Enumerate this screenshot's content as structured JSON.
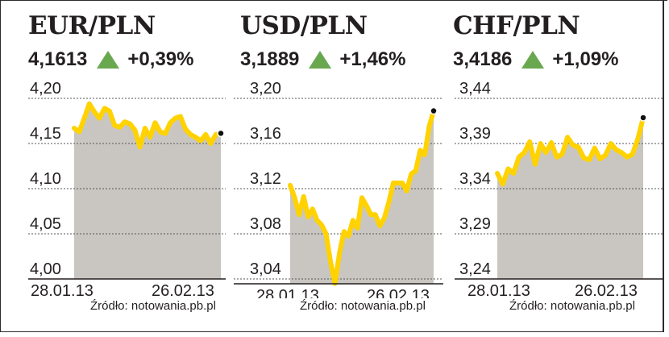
{
  "colors": {
    "line": "#ffd200",
    "area": "#c9c6c1",
    "arrow_up": "#6aa84f",
    "grid": "#555555",
    "text": "#231f20"
  },
  "source_label": "Źródło: notowania.pb.pl",
  "panels": [
    {
      "title": "EUR/PLN",
      "rate": "4,1613",
      "change": "+0,39%",
      "direction_icon": "up-triangle-icon"
    },
    {
      "title": "USD/PLN",
      "rate": "3,1889",
      "change": "+1,46%",
      "direction_icon": "up-triangle-icon"
    },
    {
      "title": "CHF/PLN",
      "rate": "3,4186",
      "change": "+1,09%",
      "direction_icon": "up-triangle-icon"
    }
  ],
  "chart_data": [
    {
      "type": "area",
      "title": "EUR/PLN",
      "x_ticks": [
        "28.01.13",
        "26.02.13"
      ],
      "y_ticks": [
        "4,20",
        "4,15",
        "4,10",
        "4,05",
        "4,00"
      ],
      "ylim": [
        4.0,
        4.2
      ],
      "values": [
        4.167,
        4.163,
        4.178,
        4.194,
        4.185,
        4.178,
        4.189,
        4.186,
        4.17,
        4.168,
        4.174,
        4.172,
        4.165,
        4.146,
        4.167,
        4.157,
        4.173,
        4.163,
        4.161,
        4.173,
        4.178,
        4.18,
        4.166,
        4.16,
        4.157,
        4.153,
        4.16,
        4.15,
        4.16,
        4.1613
      ],
      "last_marker": true
    },
    {
      "type": "area",
      "title": "USD/PLN",
      "x_ticks": [
        "28.01.13",
        "26.02.13"
      ],
      "y_ticks": [
        "3,20",
        "3,16",
        "3,12",
        "3,08",
        "3,04"
      ],
      "ylim": [
        3.02,
        3.2
      ],
      "values": [
        3.123,
        3.112,
        3.097,
        3.113,
        3.095,
        3.102,
        3.092,
        3.088,
        3.08,
        3.055,
        3.036,
        3.063,
        3.082,
        3.078,
        3.092,
        3.085,
        3.112,
        3.105,
        3.097,
        3.097,
        3.087,
        3.094,
        3.108,
        3.125,
        3.125,
        3.125,
        3.118,
        3.133,
        3.136,
        3.154,
        3.15,
        3.175,
        3.1889
      ],
      "last_marker": true
    },
    {
      "type": "area",
      "title": "CHF/PLN",
      "x_ticks": [
        "28.01.13",
        "26.02.13"
      ],
      "y_ticks": [
        "3,44",
        "3,39",
        "3,34",
        "3,29",
        "3,24"
      ],
      "ylim": [
        3.22,
        3.45
      ],
      "values": [
        3.357,
        3.345,
        3.362,
        3.357,
        3.375,
        3.38,
        3.392,
        3.367,
        3.39,
        3.38,
        3.391,
        3.375,
        3.378,
        3.397,
        3.388,
        3.386,
        3.374,
        3.372,
        3.385,
        3.373,
        3.377,
        3.39,
        3.383,
        3.38,
        3.375,
        3.378,
        3.395,
        3.4186
      ],
      "last_marker": true
    }
  ]
}
